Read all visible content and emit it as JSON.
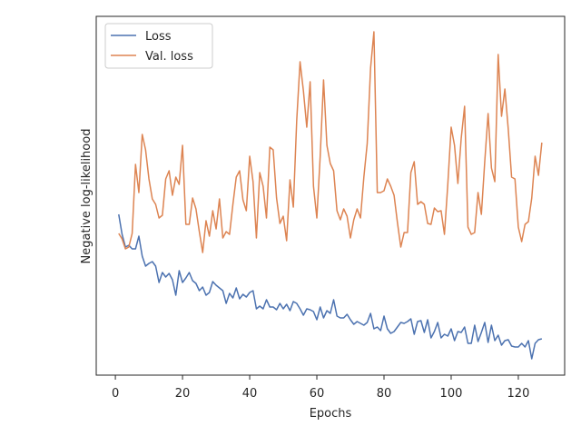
{
  "chart_data": {
    "type": "line",
    "xlabel": "Epochs",
    "ylabel": "Negative log-likelihood",
    "x": [
      1,
      2,
      3,
      4,
      5,
      6,
      7,
      8,
      9,
      10,
      11,
      12,
      13,
      14,
      15,
      16,
      17,
      18,
      19,
      20,
      21,
      22,
      23,
      24,
      25,
      26,
      27,
      28,
      29,
      30,
      31,
      32,
      33,
      34,
      35,
      36,
      37,
      38,
      39,
      40,
      41,
      42,
      43,
      44,
      45,
      46,
      47,
      48,
      49,
      50,
      51,
      52,
      53,
      54,
      55,
      56,
      57,
      58,
      59,
      60,
      61,
      62,
      63,
      64,
      65,
      66,
      67,
      68,
      69,
      70,
      71,
      72,
      73,
      74,
      75,
      76,
      77,
      78,
      79,
      80,
      81,
      82,
      83,
      84,
      85,
      86,
      87,
      88,
      89,
      90,
      91,
      92,
      93,
      94,
      95,
      96,
      97,
      98,
      99,
      100,
      101,
      102,
      103,
      104,
      105,
      106,
      107,
      108,
      109,
      110,
      111,
      112,
      113,
      114,
      115,
      116,
      117,
      118,
      119,
      120,
      121,
      122,
      123,
      124,
      125,
      126,
      127
    ],
    "series": [
      {
        "name": "Loss",
        "color": "#4c72b0",
        "values": [
          177,
          155,
          141,
          143,
          139,
          139,
          153,
          131,
          120,
          123,
          125,
          120,
          102,
          113,
          108,
          112,
          105,
          88,
          115,
          102,
          107,
          113,
          104,
          101,
          93,
          97,
          88,
          91,
          103,
          99,
          96,
          93,
          79,
          90,
          85,
          96,
          84,
          89,
          86,
          91,
          93,
          73,
          76,
          73,
          83,
          75,
          75,
          72,
          79,
          73,
          78,
          71,
          81,
          79,
          73,
          66,
          73,
          72,
          70,
          61,
          75,
          63,
          71,
          68,
          83,
          65,
          63,
          63,
          67,
          61,
          56,
          59,
          57,
          55,
          58,
          68,
          51,
          53,
          49,
          65,
          51,
          46,
          48,
          53,
          58,
          57,
          59,
          62,
          45,
          59,
          60,
          47,
          61,
          41,
          48,
          58,
          41,
          45,
          43,
          51,
          38,
          48,
          47,
          53,
          35,
          35,
          55,
          37,
          47,
          58,
          36,
          55,
          38,
          44,
          33,
          38,
          39,
          32,
          31,
          31,
          35,
          31,
          38,
          18,
          35,
          39,
          40
        ]
      },
      {
        "name": "Val. loss",
        "color": "#dd8452",
        "values": [
          156,
          150,
          139,
          141,
          156,
          232,
          201,
          265,
          248,
          216,
          194,
          188,
          173,
          176,
          216,
          225,
          198,
          218,
          210,
          253,
          166,
          166,
          195,
          183,
          158,
          135,
          170,
          153,
          181,
          161,
          194,
          151,
          158,
          155,
          188,
          218,
          225,
          193,
          181,
          241,
          213,
          151,
          223,
          208,
          173,
          251,
          248,
          195,
          167,
          175,
          148,
          215,
          185,
          280,
          345,
          313,
          273,
          323,
          208,
          173,
          241,
          325,
          253,
          233,
          225,
          181,
          171,
          183,
          175,
          151,
          171,
          183,
          173,
          218,
          255,
          338,
          378,
          201,
          201,
          203,
          216,
          208,
          198,
          168,
          141,
          157,
          157,
          223,
          235,
          188,
          191,
          188,
          167,
          166,
          184,
          180,
          181,
          155,
          210,
          273,
          253,
          211,
          261,
          296,
          163,
          155,
          157,
          201,
          177,
          235,
          288,
          228,
          213,
          353,
          285,
          315,
          271,
          218,
          216,
          163,
          147,
          166,
          169,
          195,
          241,
          220,
          256
        ]
      }
    ],
    "xlim": [
      -5.7,
      133.8
    ],
    "xticks": [
      0,
      20,
      40,
      60,
      80,
      100,
      120
    ],
    "ylim": [
      0,
      395
    ],
    "legend": "upper left"
  }
}
